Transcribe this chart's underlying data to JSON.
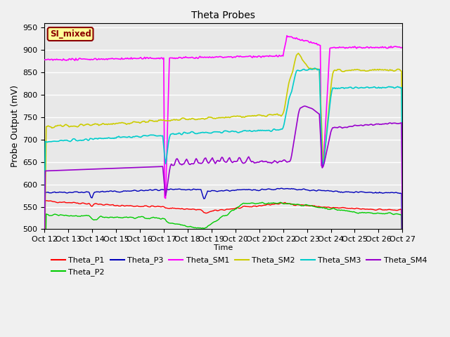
{
  "title": "Theta Probes",
  "xlabel": "Time",
  "ylabel": "Probe Output (mV)",
  "ylim": [
    500,
    960
  ],
  "xlim": [
    0,
    375
  ],
  "background_color": "#e8e8e8",
  "grid_color": "#ffffff",
  "annotation_text": "SI_mixed",
  "annotation_bg": "#ffff99",
  "annotation_border": "#8b0000",
  "x_tick_labels": [
    "Oct 12",
    "Oct 13",
    "Oct 14",
    "Oct 15",
    "Oct 16",
    "Oct 17",
    "Oct 18",
    "Oct 19",
    "Oct 20",
    "Oct 21",
    "Oct 22",
    "Oct 23",
    "Oct 24",
    "Oct 25",
    "Oct 26",
    "Oct 27"
  ],
  "x_tick_positions": [
    0,
    25,
    50,
    75,
    100,
    125,
    150,
    175,
    200,
    225,
    250,
    275,
    300,
    325,
    350,
    375
  ],
  "yticks": [
    500,
    550,
    600,
    650,
    700,
    750,
    800,
    850,
    900,
    950
  ],
  "series": {
    "Theta_P1": {
      "color": "#ff0000",
      "linewidth": 1.0
    },
    "Theta_P2": {
      "color": "#00cc00",
      "linewidth": 1.0
    },
    "Theta_P3": {
      "color": "#0000bb",
      "linewidth": 1.0
    },
    "Theta_SM1": {
      "color": "#ff00ff",
      "linewidth": 1.2
    },
    "Theta_SM2": {
      "color": "#cccc00",
      "linewidth": 1.2
    },
    "Theta_SM3": {
      "color": "#00cccc",
      "linewidth": 1.2
    },
    "Theta_SM4": {
      "color": "#9900cc",
      "linewidth": 1.2
    }
  }
}
